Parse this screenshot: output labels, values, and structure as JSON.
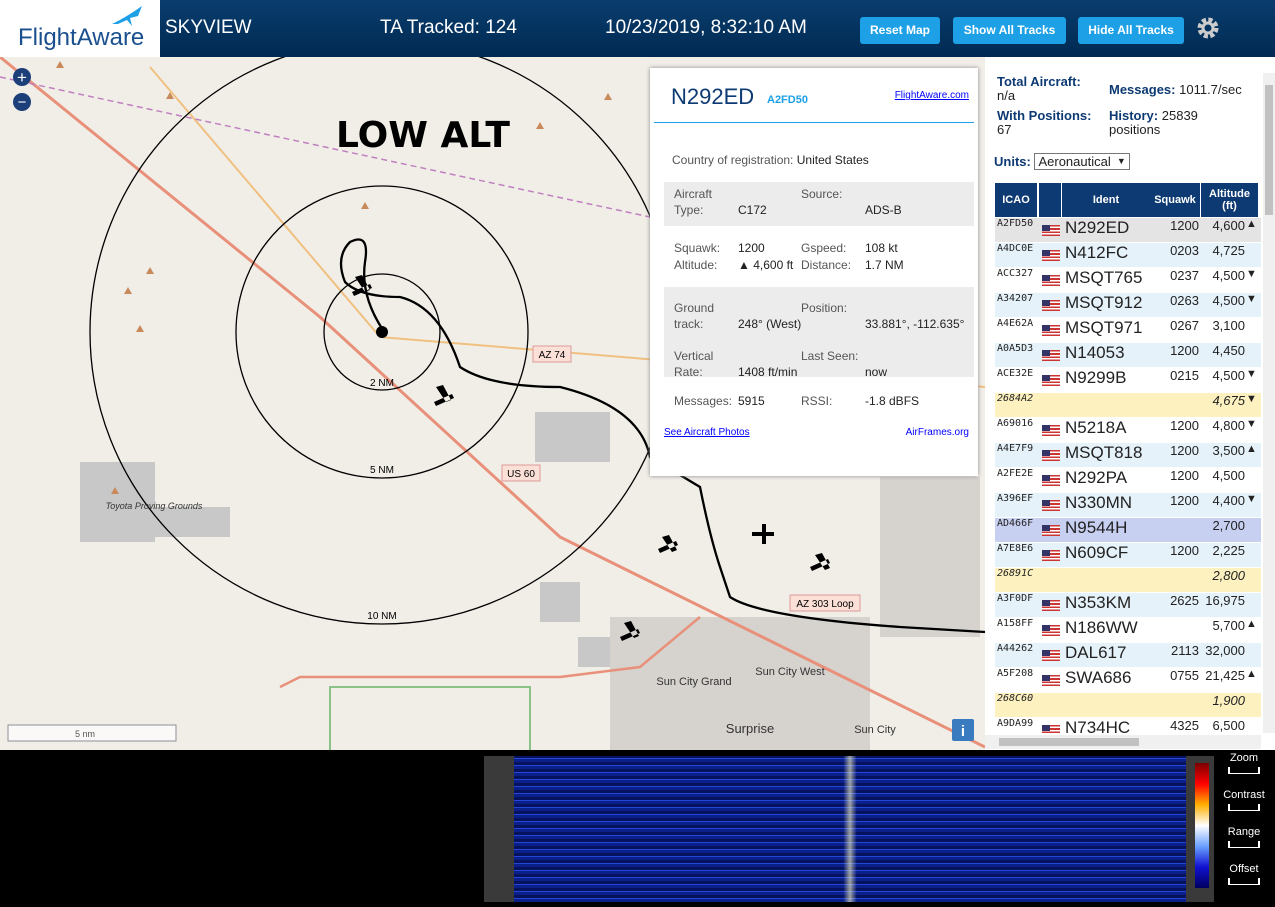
{
  "header": {
    "logo": "FlightAware",
    "app": "SKYVIEW",
    "tracked": "TA Tracked: 124",
    "datetime": "10/23/2019, 8:32:10 AM",
    "buttons": [
      "Reset Map",
      "Show All Tracks",
      "Hide All Tracks"
    ]
  },
  "map": {
    "title": "LOW ALT",
    "rings": [
      "2 NM",
      "5 NM",
      "10 NM"
    ],
    "roads": [
      "AZ 74",
      "US 60",
      "AZ 303 Loop"
    ],
    "places": [
      "Sun City Grand",
      "Sun City West",
      "Surprise",
      "Sun City",
      "Toyota Proving Grounds"
    ],
    "scale": "5 nm",
    "info": "i",
    "zoom": [
      "+",
      "−"
    ]
  },
  "popup": {
    "registration": "N292ED",
    "icao": "A2FD50",
    "link": "FlightAware.com",
    "country_label": "Country of registration:",
    "country": "United States",
    "fields": [
      [
        "Aircraft Type:",
        "C172",
        "Source:",
        "ADS-B"
      ],
      [
        "Squawk:",
        "1200",
        "Gspeed:",
        "108 kt"
      ],
      [
        "Altitude:",
        "▲ 4,600 ft",
        "Distance:",
        "1.7 NM"
      ],
      [
        "Ground track:",
        "248° (West)",
        "Position:",
        "33.881°, -112.635°"
      ],
      [
        "Vertical Rate:",
        "1408 ft/min",
        "Last Seen:",
        "now"
      ],
      [
        "Messages:",
        "5915",
        "RSSI:",
        "-1.8 dBFS"
      ]
    ],
    "photos": "See Aircraft Photos",
    "airframes": "AirFrames.org"
  },
  "stats": {
    "total_label": "Total Aircraft:",
    "total": "n/a",
    "messages_label": "Messages:",
    "messages": "1011.7/sec",
    "positions_label": "With Positions:",
    "positions": "67",
    "history_label": "History:",
    "history": "25839 positions",
    "units_label": "Units:",
    "units": "Aeronautical"
  },
  "table": {
    "columns": [
      "ICAO",
      "Ident",
      "Squawk",
      "Altitude (ft)"
    ],
    "rows": [
      {
        "icao": "A2FD50",
        "ident": "N292ED",
        "squawk": "1200",
        "altitude": "4,600",
        "trend": "▲",
        "bg": "#e4e4e4"
      },
      {
        "icao": "A4DC0E",
        "ident": "N412FC",
        "squawk": "0203",
        "altitude": "4,725",
        "trend": null,
        "bg": "#e6f2fa"
      },
      {
        "icao": "ACC327",
        "ident": "MSQT765",
        "squawk": "0237",
        "altitude": "4,500",
        "trend": "▼",
        "bg": "#ffffff"
      },
      {
        "icao": "A34207",
        "ident": "MSQT912",
        "squawk": "0263",
        "altitude": "4,500",
        "trend": "▼",
        "bg": "#e6f2fa"
      },
      {
        "icao": "A4E62A",
        "ident": "MSQT971",
        "squawk": "0267",
        "altitude": "3,100",
        "trend": null,
        "bg": "#ffffff"
      },
      {
        "icao": "A0A5D3",
        "ident": "N14053",
        "squawk": "1200",
        "altitude": "4,450",
        "trend": null,
        "bg": "#e6f2fa"
      },
      {
        "icao": "ACE32E",
        "ident": "N9299B",
        "squawk": "0215",
        "altitude": "4,500",
        "trend": "▼",
        "bg": "#ffffff"
      },
      {
        "icao": "2684A2",
        "ident": null,
        "squawk": null,
        "altitude": "4,675",
        "trend": "▼",
        "bg": "#fdf1c0"
      },
      {
        "icao": "A69016",
        "ident": "N5218A",
        "squawk": "1200",
        "altitude": "4,800",
        "trend": "▼",
        "bg": "#ffffff"
      },
      {
        "icao": "A4E7F9",
        "ident": "MSQT818",
        "squawk": "1200",
        "altitude": "3,500",
        "trend": "▲",
        "bg": "#e6f2fa"
      },
      {
        "icao": "A2FE2E",
        "ident": "N292PA",
        "squawk": "1200",
        "altitude": "4,500",
        "trend": null,
        "bg": "#ffffff"
      },
      {
        "icao": "A396EF",
        "ident": "N330MN",
        "squawk": "1200",
        "altitude": "4,400",
        "trend": "▼",
        "bg": "#e6f2fa"
      },
      {
        "icao": "AD466F",
        "ident": "N9544H",
        "squawk": null,
        "altitude": "2,700",
        "trend": null,
        "bg": "#c8d0f2"
      },
      {
        "icao": "A7E8E6",
        "ident": "N609CF",
        "squawk": "1200",
        "altitude": "2,225",
        "trend": null,
        "bg": "#e6f2fa"
      },
      {
        "icao": "26891C",
        "ident": null,
        "squawk": null,
        "altitude": "2,800",
        "trend": null,
        "bg": "#fdf1c0"
      },
      {
        "icao": "A3F0DF",
        "ident": "N353KM",
        "squawk": "2625",
        "altitude": "16,975",
        "trend": null,
        "bg": "#e6f2fa"
      },
      {
        "icao": "A158FF",
        "ident": "N186WW",
        "squawk": null,
        "altitude": "5,700",
        "trend": "▲",
        "bg": "#ffffff"
      },
      {
        "icao": "A44262",
        "ident": "DAL617",
        "squawk": "2113",
        "altitude": "32,000",
        "trend": null,
        "bg": "#e6f2fa"
      },
      {
        "icao": "A5F208",
        "ident": "SWA686",
        "squawk": "0755",
        "altitude": "21,425",
        "trend": "▲",
        "bg": "#ffffff"
      },
      {
        "icao": "268C60",
        "ident": null,
        "squawk": null,
        "altitude": "1,900",
        "trend": null,
        "bg": "#fdf1c0"
      },
      {
        "icao": "A9DA99",
        "ident": "N734HC",
        "squawk": "4325",
        "altitude": "6,500",
        "trend": null,
        "bg": "#ffffff"
      }
    ]
  },
  "spectrum": {
    "controls": [
      "Zoom",
      "Contrast",
      "Range",
      "Offset"
    ]
  }
}
